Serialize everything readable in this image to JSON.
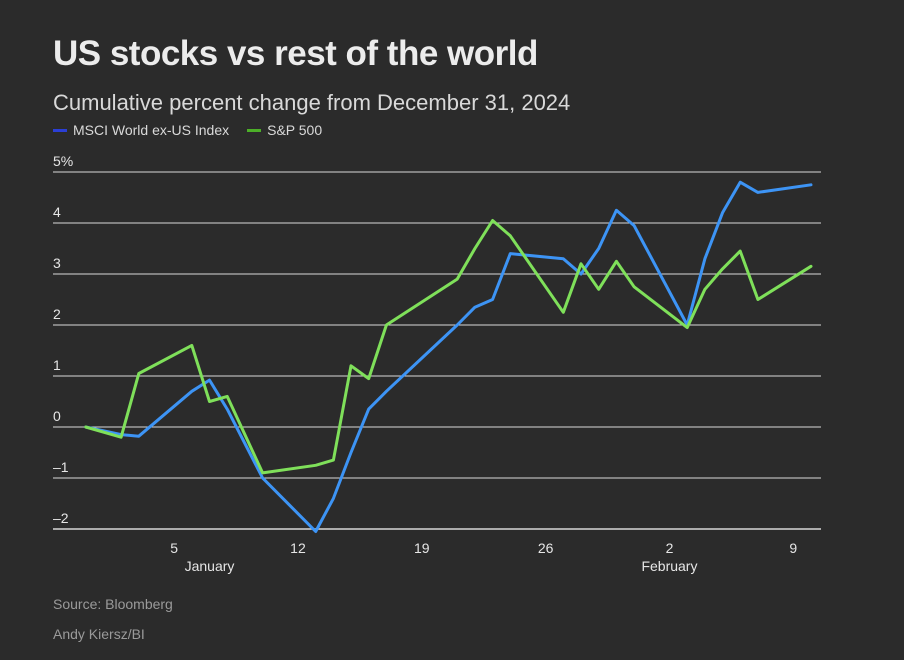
{
  "chart_data": {
    "type": "line",
    "title": "US stocks vs rest of the world",
    "subtitle": "Cumulative percent change from December 31, 2024",
    "ylim": [
      -2,
      5
    ],
    "y_ticks": [
      {
        "value": 5,
        "label": "5%"
      },
      {
        "value": 4,
        "label": "4"
      },
      {
        "value": 3,
        "label": "3"
      },
      {
        "value": 2,
        "label": "2"
      },
      {
        "value": 1,
        "label": "1"
      },
      {
        "value": 0,
        "label": "0"
      },
      {
        "value": -1,
        "label": "–1"
      },
      {
        "value": -2,
        "label": "–2"
      }
    ],
    "x_ticks": [
      {
        "date": "2025-01-05",
        "label": "5"
      },
      {
        "date": "2025-01-12",
        "label": "12"
      },
      {
        "date": "2025-01-19",
        "label": "19"
      },
      {
        "date": "2025-01-26",
        "label": "26"
      },
      {
        "date": "2025-02-02",
        "label": "2"
      },
      {
        "date": "2025-02-09",
        "label": "9"
      }
    ],
    "month_labels": [
      {
        "date": "2025-01-07",
        "label": "January"
      },
      {
        "date": "2025-02-02",
        "label": "February"
      }
    ],
    "xlim": [
      "2024-12-30",
      "2025-02-10"
    ],
    "grid": true,
    "legend_position": "top-left",
    "series": [
      {
        "name": "MSCI World ex-US Index",
        "color": "#3d94f5",
        "legend_color": "#2b3fd6",
        "points": [
          [
            "2024-12-31",
            0.0
          ],
          [
            "2025-01-02",
            -0.15
          ],
          [
            "2025-01-03",
            -0.18
          ],
          [
            "2025-01-06",
            0.7
          ],
          [
            "2025-01-07",
            0.92
          ],
          [
            "2025-01-08",
            0.35
          ],
          [
            "2025-01-10",
            -1.0
          ],
          [
            "2025-01-13",
            -2.05
          ],
          [
            "2025-01-14",
            -1.4
          ],
          [
            "2025-01-15",
            -0.5
          ],
          [
            "2025-01-16",
            0.35
          ],
          [
            "2025-01-17",
            0.7
          ],
          [
            "2025-01-21",
            2.0
          ],
          [
            "2025-01-22",
            2.35
          ],
          [
            "2025-01-23",
            2.5
          ],
          [
            "2025-01-24",
            3.4
          ],
          [
            "2025-01-27",
            3.3
          ],
          [
            "2025-01-28",
            3.0
          ],
          [
            "2025-01-29",
            3.5
          ],
          [
            "2025-01-30",
            4.25
          ],
          [
            "2025-01-31",
            3.95
          ],
          [
            "2025-02-03",
            2.0
          ],
          [
            "2025-02-04",
            3.3
          ],
          [
            "2025-02-05",
            4.2
          ],
          [
            "2025-02-06",
            4.8
          ],
          [
            "2025-02-07",
            4.6
          ],
          [
            "2025-02-10",
            4.75
          ]
        ]
      },
      {
        "name": "S&P 500",
        "color": "#7fe05a",
        "legend_color": "#4caf28",
        "points": [
          [
            "2024-12-31",
            0.0
          ],
          [
            "2025-01-02",
            -0.2
          ],
          [
            "2025-01-03",
            1.05
          ],
          [
            "2025-01-06",
            1.6
          ],
          [
            "2025-01-07",
            0.5
          ],
          [
            "2025-01-08",
            0.6
          ],
          [
            "2025-01-10",
            -0.9
          ],
          [
            "2025-01-13",
            -0.75
          ],
          [
            "2025-01-14",
            -0.65
          ],
          [
            "2025-01-15",
            1.2
          ],
          [
            "2025-01-16",
            0.95
          ],
          [
            "2025-01-17",
            2.0
          ],
          [
            "2025-01-21",
            2.9
          ],
          [
            "2025-01-22",
            3.5
          ],
          [
            "2025-01-23",
            4.05
          ],
          [
            "2025-01-24",
            3.75
          ],
          [
            "2025-01-27",
            2.25
          ],
          [
            "2025-01-28",
            3.2
          ],
          [
            "2025-01-29",
            2.7
          ],
          [
            "2025-01-30",
            3.25
          ],
          [
            "2025-01-31",
            2.75
          ],
          [
            "2025-02-03",
            1.95
          ],
          [
            "2025-02-04",
            2.7
          ],
          [
            "2025-02-05",
            3.1
          ],
          [
            "2025-02-06",
            3.45
          ],
          [
            "2025-02-07",
            2.5
          ],
          [
            "2025-02-10",
            3.15
          ]
        ]
      }
    ]
  },
  "footer": {
    "source": "Source: Bloomberg",
    "credit": "Andy Kiersz/BI"
  }
}
